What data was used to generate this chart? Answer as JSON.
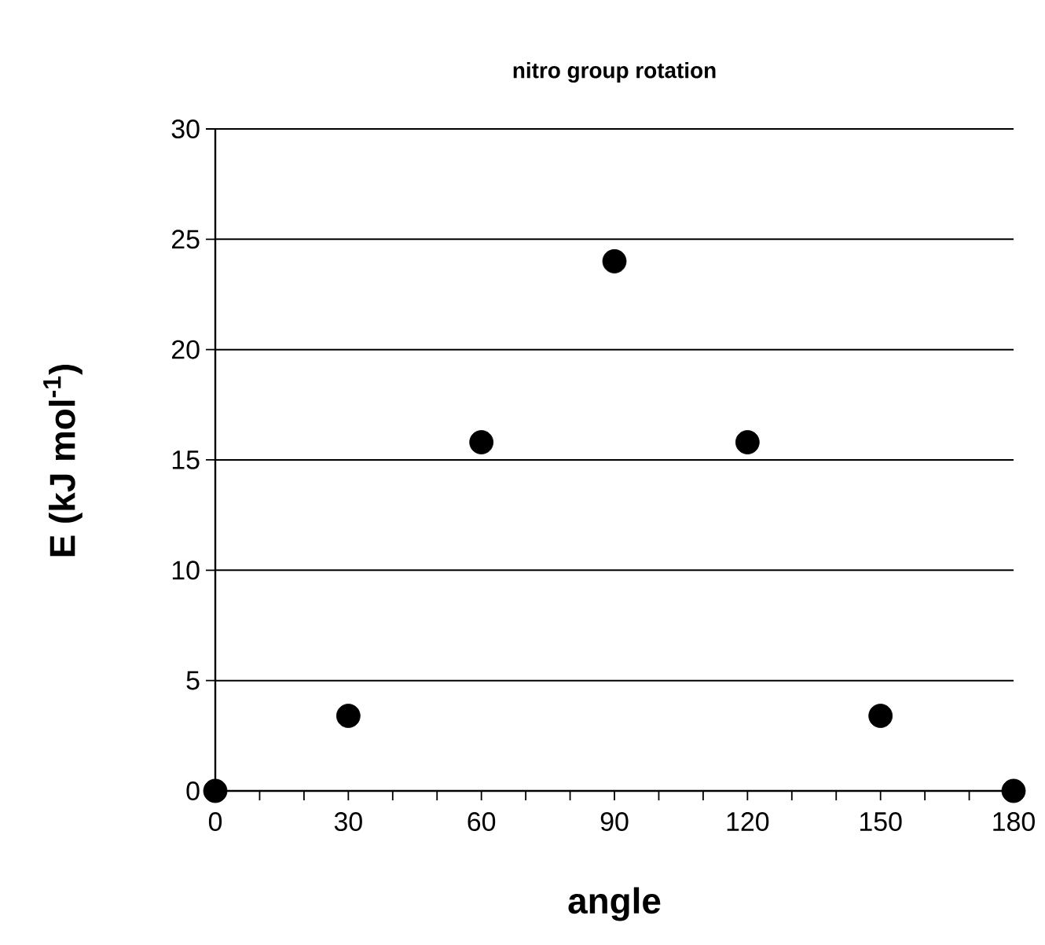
{
  "chart_data": {
    "type": "scatter",
    "title": "nitro group rotation",
    "xlabel": "angle",
    "ylabel": "E (kJ mol$^{-1}$)",
    "x": [
      0,
      30,
      60,
      90,
      120,
      150,
      180
    ],
    "series": [
      {
        "color": "#000000",
        "values": [
          0,
          3.4,
          15.8,
          24,
          15.8,
          3.4,
          0
        ]
      }
    ],
    "xlim": [
      0,
      180
    ],
    "xticks": [
      0,
      30,
      60,
      90,
      120,
      150,
      180
    ],
    "ylim": [
      0,
      30
    ],
    "yticks": [
      0,
      5,
      10,
      15,
      20,
      25,
      30
    ],
    "grid": "y",
    "marker": "circle"
  }
}
